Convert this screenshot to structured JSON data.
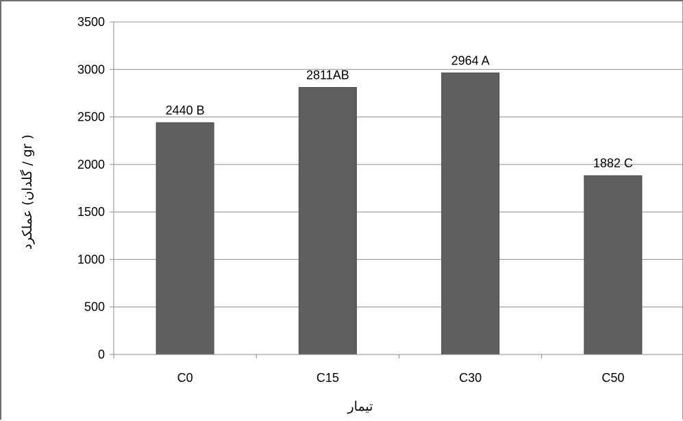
{
  "chart_data": {
    "type": "bar",
    "categories": [
      "C0",
      "C15",
      "C30",
      "C50"
    ],
    "values": [
      2440,
      2811,
      2964,
      1882
    ],
    "data_labels": [
      "2440 B",
      "2811AB",
      "2964 A",
      "1882 C"
    ],
    "xlabel": "تیمار",
    "ylabel": "عملکرد (گلدان / gr )",
    "ylim": [
      0,
      3500
    ],
    "yticks": [
      0,
      500,
      1000,
      1500,
      2000,
      2500,
      3000,
      3500
    ],
    "grid": true,
    "legend": "none",
    "bar_color": "#5f5f5f",
    "grid_color": "#8c8c8c"
  }
}
